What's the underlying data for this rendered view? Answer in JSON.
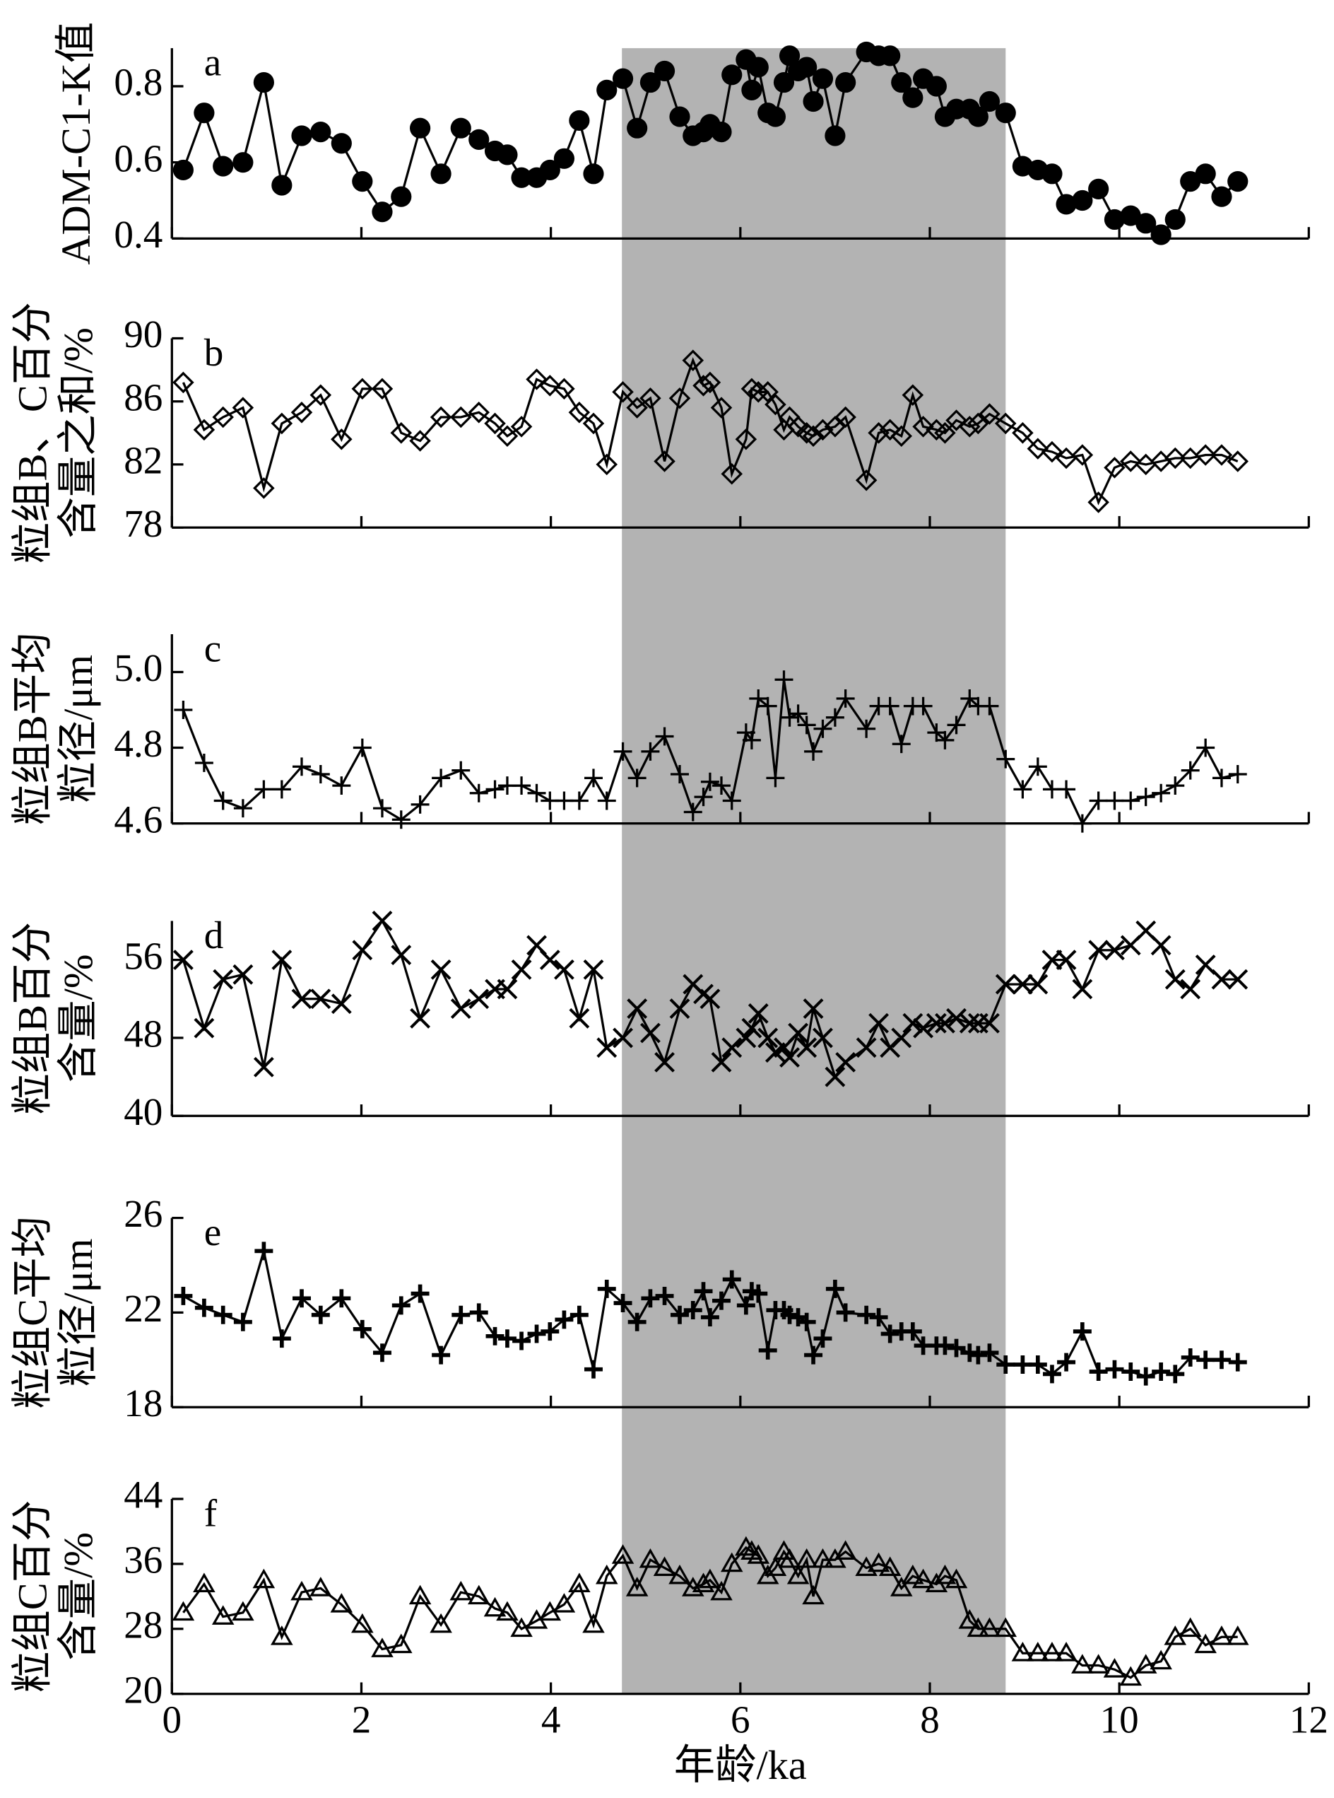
{
  "shaded_x": [
    4.75,
    8.8
  ],
  "chart_data": [
    {
      "type": "line",
      "label": "a",
      "ylabel": [
        "ADM-C1-K值"
      ],
      "marker": "circle",
      "color": "#000000",
      "x": [
        0.12,
        0.34,
        0.54,
        0.75,
        0.97,
        1.16,
        1.37,
        1.57,
        1.79,
        2.01,
        2.22,
        2.42,
        2.62,
        2.84,
        3.05,
        3.24,
        3.41,
        3.54,
        3.69,
        3.85,
        3.99,
        4.14,
        4.3,
        4.45,
        4.59,
        4.76,
        4.91,
        5.05,
        5.2,
        5.36,
        5.5,
        5.61,
        5.68,
        5.8,
        5.91,
        6.06,
        6.12,
        6.19,
        6.29,
        6.37,
        6.46,
        6.52,
        6.61,
        6.7,
        6.77,
        6.87,
        7.0,
        7.11,
        7.33,
        7.46,
        7.58,
        7.7,
        7.82,
        7.93,
        8.07,
        8.16,
        8.28,
        8.42,
        8.51,
        8.63,
        8.8,
        8.98,
        9.14,
        9.29,
        9.44,
        9.61,
        9.78,
        9.95,
        10.12,
        10.28,
        10.44,
        10.59,
        10.75,
        10.91,
        11.08,
        11.25
      ],
      "values": [
        0.58,
        0.73,
        0.59,
        0.6,
        0.81,
        0.54,
        0.67,
        0.68,
        0.65,
        0.55,
        0.47,
        0.51,
        0.69,
        0.57,
        0.69,
        0.66,
        0.63,
        0.62,
        0.56,
        0.56,
        0.58,
        0.61,
        0.71,
        0.57,
        0.79,
        0.82,
        0.69,
        0.81,
        0.84,
        0.72,
        0.67,
        0.68,
        0.7,
        0.68,
        0.83,
        0.87,
        0.79,
        0.85,
        0.73,
        0.72,
        0.81,
        0.88,
        0.84,
        0.85,
        0.76,
        0.82,
        0.67,
        0.81,
        0.89,
        0.88,
        0.88,
        0.81,
        0.77,
        0.82,
        0.8,
        0.72,
        0.74,
        0.74,
        0.72,
        0.76,
        0.73,
        0.59,
        0.58,
        0.57,
        0.49,
        0.5,
        0.53,
        0.45,
        0.46,
        0.44,
        0.41,
        0.45,
        0.55,
        0.57,
        0.51,
        0.55
      ],
      "xlim": [
        0,
        12
      ],
      "xticks": [
        0,
        2,
        4,
        6,
        8,
        10,
        12
      ],
      "ylim": [
        0.4,
        0.9
      ],
      "yticks": [
        0.4,
        0.6,
        0.8
      ]
    },
    {
      "type": "line",
      "label": "b",
      "ylabel": [
        "粒组B、C百分",
        "含量之和/%"
      ],
      "marker": "diamond",
      "color": "#000000",
      "x": [
        0.12,
        0.34,
        0.54,
        0.75,
        0.97,
        1.16,
        1.37,
        1.57,
        1.79,
        2.01,
        2.22,
        2.42,
        2.62,
        2.84,
        3.05,
        3.24,
        3.41,
        3.54,
        3.69,
        3.85,
        3.99,
        4.14,
        4.3,
        4.45,
        4.59,
        4.76,
        4.91,
        5.05,
        5.2,
        5.36,
        5.5,
        5.61,
        5.68,
        5.8,
        5.91,
        6.06,
        6.12,
        6.19,
        6.29,
        6.37,
        6.46,
        6.52,
        6.61,
        6.7,
        6.77,
        6.87,
        7.0,
        7.11,
        7.33,
        7.46,
        7.58,
        7.7,
        7.82,
        7.93,
        8.07,
        8.16,
        8.28,
        8.42,
        8.51,
        8.63,
        8.8,
        8.98,
        9.14,
        9.29,
        9.44,
        9.61,
        9.78,
        9.95,
        10.12,
        10.28,
        10.44,
        10.59,
        10.75,
        10.91,
        11.08,
        11.25
      ],
      "values": [
        87.2,
        84.2,
        85,
        85.6,
        80.5,
        84.6,
        85.3,
        86.4,
        83.6,
        86.8,
        86.8,
        84,
        83.5,
        85,
        85,
        85.3,
        84.6,
        83.8,
        84.4,
        87.4,
        87,
        86.8,
        85.3,
        84.6,
        82,
        86.6,
        85.6,
        86.2,
        82.2,
        86.2,
        88.6,
        87,
        87.2,
        85.6,
        81.4,
        83.6,
        86.8,
        86.6,
        86.6,
        85.8,
        84.2,
        85,
        84.4,
        84,
        83.8,
        84.2,
        84.4,
        85,
        81,
        84,
        84.2,
        83.8,
        86.4,
        84.4,
        84.2,
        84,
        84.8,
        84.4,
        84.6,
        85.2,
        84.6,
        84,
        83,
        82.8,
        82.4,
        82.6,
        79.6,
        81.8,
        82.2,
        82,
        82.2,
        82.4,
        82.4,
        82.6,
        82.6,
        82.2
      ],
      "xlim": [
        0,
        12
      ],
      "xticks": [
        0,
        2,
        4,
        6,
        8,
        10,
        12
      ],
      "ylim": [
        78,
        90
      ],
      "yticks": [
        78,
        82,
        86,
        90
      ]
    },
    {
      "type": "line",
      "label": "c",
      "ylabel": [
        "粒组B平均",
        "粒径/μm"
      ],
      "marker": "plus",
      "color": "#000000",
      "x": [
        0.12,
        0.34,
        0.54,
        0.75,
        0.97,
        1.16,
        1.37,
        1.57,
        1.79,
        2.01,
        2.22,
        2.42,
        2.62,
        2.84,
        3.05,
        3.24,
        3.41,
        3.54,
        3.69,
        3.85,
        3.99,
        4.14,
        4.3,
        4.45,
        4.59,
        4.76,
        4.91,
        5.05,
        5.2,
        5.36,
        5.5,
        5.61,
        5.68,
        5.8,
        5.91,
        6.06,
        6.12,
        6.19,
        6.29,
        6.37,
        6.46,
        6.52,
        6.61,
        6.7,
        6.77,
        6.87,
        7.0,
        7.11,
        7.33,
        7.46,
        7.58,
        7.7,
        7.82,
        7.93,
        8.07,
        8.16,
        8.28,
        8.42,
        8.51,
        8.63,
        8.8,
        8.98,
        9.14,
        9.29,
        9.44,
        9.61,
        9.78,
        9.95,
        10.12,
        10.28,
        10.44,
        10.59,
        10.75,
        10.91,
        11.08,
        11.25
      ],
      "values": [
        4.9,
        4.76,
        4.66,
        4.64,
        4.69,
        4.69,
        4.75,
        4.73,
        4.7,
        4.8,
        4.64,
        4.61,
        4.65,
        4.72,
        4.74,
        4.68,
        4.69,
        4.7,
        4.7,
        4.68,
        4.66,
        4.66,
        4.66,
        4.72,
        4.66,
        4.79,
        4.72,
        4.79,
        4.83,
        4.73,
        4.63,
        4.67,
        4.71,
        4.7,
        4.66,
        4.84,
        4.82,
        4.93,
        4.91,
        4.72,
        4.98,
        4.88,
        4.89,
        4.86,
        4.79,
        4.85,
        4.88,
        4.93,
        4.85,
        4.91,
        4.91,
        4.81,
        4.91,
        4.91,
        4.84,
        4.82,
        4.86,
        4.93,
        4.91,
        4.91,
        4.77,
        4.69,
        4.75,
        4.69,
        4.69,
        4.6,
        4.66,
        4.66,
        4.66,
        4.67,
        4.68,
        4.7,
        4.74,
        4.8,
        4.72,
        4.73
      ],
      "xlim": [
        0,
        12
      ],
      "xticks": [
        0,
        2,
        4,
        6,
        8,
        10,
        12
      ],
      "ylim": [
        4.6,
        5.1
      ],
      "yticks": [
        4.6,
        4.8,
        {
          "value": 5,
          "label": "5.0"
        }
      ]
    },
    {
      "type": "line",
      "label": "d",
      "ylabel": [
        "粒组B百分",
        "含量/%"
      ],
      "marker": "x",
      "color": "#000000",
      "x": [
        0.12,
        0.34,
        0.54,
        0.75,
        0.97,
        1.16,
        1.37,
        1.57,
        1.79,
        2.01,
        2.22,
        2.42,
        2.62,
        2.84,
        3.05,
        3.24,
        3.41,
        3.54,
        3.69,
        3.85,
        3.99,
        4.14,
        4.3,
        4.45,
        4.59,
        4.76,
        4.91,
        5.05,
        5.2,
        5.36,
        5.5,
        5.61,
        5.68,
        5.8,
        5.91,
        6.06,
        6.12,
        6.19,
        6.29,
        6.37,
        6.46,
        6.52,
        6.61,
        6.7,
        6.77,
        6.87,
        7.0,
        7.11,
        7.33,
        7.46,
        7.58,
        7.7,
        7.82,
        7.93,
        8.07,
        8.16,
        8.28,
        8.42,
        8.51,
        8.63,
        8.8,
        8.98,
        9.14,
        9.29,
        9.44,
        9.61,
        9.78,
        9.95,
        10.12,
        10.28,
        10.44,
        10.59,
        10.75,
        10.91,
        11.08,
        11.25
      ],
      "values": [
        56,
        49,
        54,
        54.5,
        45,
        56,
        52,
        52,
        51.5,
        57,
        60,
        56.5,
        50,
        55,
        51,
        52,
        53,
        53,
        55,
        57.5,
        56,
        55,
        50,
        55,
        47,
        48,
        51,
        48.5,
        45.5,
        51,
        53.5,
        52.5,
        52,
        45.5,
        47,
        48,
        49,
        50.5,
        48,
        46.5,
        47,
        46,
        48.5,
        47,
        51,
        48,
        44,
        45.5,
        47,
        49.5,
        47,
        48,
        49.5,
        49,
        49.5,
        49.5,
        50,
        49.5,
        49.5,
        49.5,
        53.5,
        53.5,
        53.5,
        56,
        56,
        53,
        57,
        57,
        57.5,
        59,
        57.5,
        54,
        53,
        55.5,
        54,
        54
      ],
      "xlim": [
        0,
        12
      ],
      "xticks": [
        0,
        2,
        4,
        6,
        8,
        10,
        12
      ],
      "ylim": [
        40,
        60
      ],
      "yticks": [
        40,
        48,
        56
      ]
    },
    {
      "type": "line",
      "label": "e",
      "ylabel": [
        "粒组C平均",
        "粒径/μm"
      ],
      "marker": "plus-bold",
      "color": "#000000",
      "x": [
        0.12,
        0.34,
        0.54,
        0.75,
        0.97,
        1.16,
        1.37,
        1.57,
        1.79,
        2.01,
        2.22,
        2.42,
        2.62,
        2.84,
        3.05,
        3.24,
        3.41,
        3.54,
        3.69,
        3.85,
        3.99,
        4.14,
        4.3,
        4.45,
        4.59,
        4.76,
        4.91,
        5.05,
        5.2,
        5.36,
        5.5,
        5.61,
        5.68,
        5.8,
        5.91,
        6.06,
        6.12,
        6.19,
        6.29,
        6.37,
        6.46,
        6.52,
        6.61,
        6.7,
        6.77,
        6.87,
        7.0,
        7.11,
        7.33,
        7.46,
        7.58,
        7.7,
        7.82,
        7.93,
        8.07,
        8.16,
        8.28,
        8.42,
        8.51,
        8.63,
        8.8,
        8.98,
        9.14,
        9.29,
        9.44,
        9.61,
        9.78,
        9.95,
        10.12,
        10.28,
        10.44,
        10.59,
        10.75,
        10.91,
        11.08,
        11.25
      ],
      "values": [
        22.7,
        22.2,
        21.9,
        21.6,
        24.6,
        20.9,
        22.6,
        21.9,
        22.6,
        21.3,
        20.3,
        22.3,
        22.8,
        20.2,
        21.9,
        22,
        21,
        20.9,
        20.8,
        21.1,
        21.2,
        21.7,
        21.9,
        19.6,
        23,
        22.4,
        21.6,
        22.6,
        22.7,
        21.9,
        22.1,
        22.9,
        21.8,
        22.5,
        23.4,
        22.3,
        22.9,
        22.8,
        20.4,
        22.1,
        22.1,
        21.9,
        21.8,
        21.6,
        20.2,
        20.9,
        23,
        22,
        21.9,
        21.8,
        21.1,
        21.2,
        21.2,
        20.6,
        20.6,
        20.6,
        20.5,
        20.3,
        20.2,
        20.3,
        19.8,
        19.8,
        19.8,
        19.4,
        19.9,
        21.2,
        19.5,
        19.6,
        19.5,
        19.3,
        19.5,
        19.4,
        20.1,
        20,
        20,
        19.9
      ],
      "xlim": [
        0,
        12
      ],
      "xticks": [
        0,
        2,
        4,
        6,
        8,
        10,
        12
      ],
      "ylim": [
        18,
        26
      ],
      "yticks": [
        18,
        22,
        26
      ]
    },
    {
      "type": "line",
      "label": "f",
      "ylabel": [
        "粒组C百分",
        "含量/%"
      ],
      "marker": "triangle",
      "color": "#000000",
      "xlabel": "年龄/ka",
      "x": [
        0.12,
        0.34,
        0.54,
        0.75,
        0.97,
        1.16,
        1.37,
        1.57,
        1.79,
        2.01,
        2.22,
        2.42,
        2.62,
        2.84,
        3.05,
        3.24,
        3.41,
        3.54,
        3.69,
        3.85,
        3.99,
        4.14,
        4.3,
        4.45,
        4.59,
        4.76,
        4.91,
        5.05,
        5.2,
        5.36,
        5.5,
        5.61,
        5.68,
        5.8,
        5.91,
        6.06,
        6.12,
        6.19,
        6.29,
        6.37,
        6.46,
        6.52,
        6.61,
        6.7,
        6.77,
        6.87,
        7.0,
        7.11,
        7.33,
        7.46,
        7.58,
        7.7,
        7.82,
        7.93,
        8.07,
        8.16,
        8.28,
        8.42,
        8.51,
        8.63,
        8.8,
        8.98,
        9.14,
        9.29,
        9.44,
        9.61,
        9.78,
        9.95,
        10.12,
        10.28,
        10.44,
        10.59,
        10.75,
        10.91,
        11.08,
        11.25
      ],
      "values": [
        30,
        33.5,
        29.5,
        30,
        34,
        27,
        32.5,
        33,
        31,
        28.5,
        25.5,
        26,
        32,
        28.5,
        32.5,
        32,
        30.5,
        30,
        28,
        29,
        30,
        31,
        33.5,
        28.5,
        34.5,
        37,
        33,
        36.5,
        35.5,
        34.5,
        33,
        33.5,
        34,
        32.5,
        36,
        38,
        37.5,
        37,
        34.5,
        35.5,
        37.5,
        36.5,
        34.5,
        36.5,
        32,
        36.5,
        36.5,
        37.5,
        35.5,
        36,
        35.5,
        33,
        34.5,
        34,
        33.5,
        34.5,
        34,
        29,
        28,
        28,
        28,
        25,
        25,
        25,
        25,
        23.5,
        23.5,
        23,
        22,
        23.5,
        24,
        27,
        28,
        26,
        27,
        27
      ],
      "xlim": [
        0,
        12
      ],
      "xticks": [
        0,
        2,
        4,
        6,
        8,
        10,
        12
      ],
      "ylim": [
        20,
        44
      ],
      "yticks": [
        20,
        28,
        36,
        44
      ]
    }
  ]
}
